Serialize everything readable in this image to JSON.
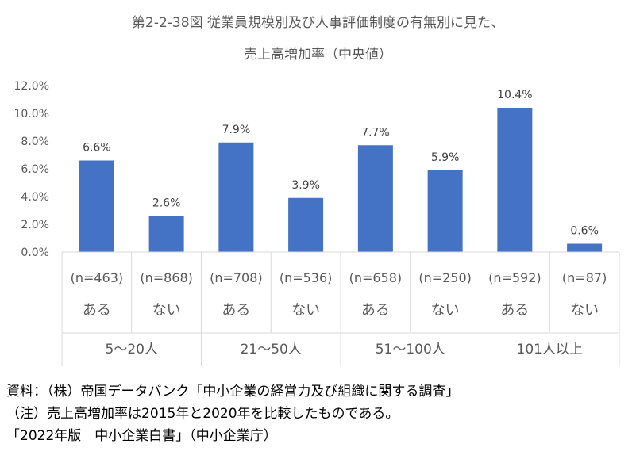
{
  "chart_data": {
    "type": "bar",
    "title": "第2-2-38図 従業員規模別及び人事評価制度の有無別に見た、",
    "subtitle": "売上高増加率（中央値）",
    "ylim": [
      0,
      12
    ],
    "yticks": [
      "0.0%",
      "2.0%",
      "4.0%",
      "6.0%",
      "8.0%",
      "10.0%",
      "12.0%"
    ],
    "yticks_values": [
      0,
      2,
      4,
      6,
      8,
      10,
      12
    ],
    "bar_color": "#4472C4",
    "grid": false,
    "categories": [
      {
        "n": "(n=463)",
        "label": "ある",
        "value": 6.6,
        "value_label": "6.6%"
      },
      {
        "n": "(n=868)",
        "label": "ない",
        "value": 2.6,
        "value_label": "2.6%"
      },
      {
        "n": "(n=708)",
        "label": "ある",
        "value": 7.9,
        "value_label": "7.9%"
      },
      {
        "n": "(n=536)",
        "label": "ない",
        "value": 3.9,
        "value_label": "3.9%"
      },
      {
        "n": "(n=658)",
        "label": "ある",
        "value": 7.7,
        "value_label": "7.7%"
      },
      {
        "n": "(n=250)",
        "label": "ない",
        "value": 5.9,
        "value_label": "5.9%"
      },
      {
        "n": "(n=592)",
        "label": "ある",
        "value": 10.4,
        "value_label": "10.4%"
      },
      {
        "n": "(n=87)",
        "label": "ない",
        "value": 0.6,
        "value_label": "0.6%"
      }
    ],
    "groups": [
      "5～20人",
      "21～50人",
      "51～100人",
      "101人以上"
    ]
  },
  "notes": {
    "source": "資料：（株）帝国データバンク「中小企業の経営力及び組織に関する調査」",
    "note": "（注）売上高増加率は2015年と2020年を比較したものである。",
    "publication": "「2022年版　中小企業白書」（中小企業庁）"
  }
}
